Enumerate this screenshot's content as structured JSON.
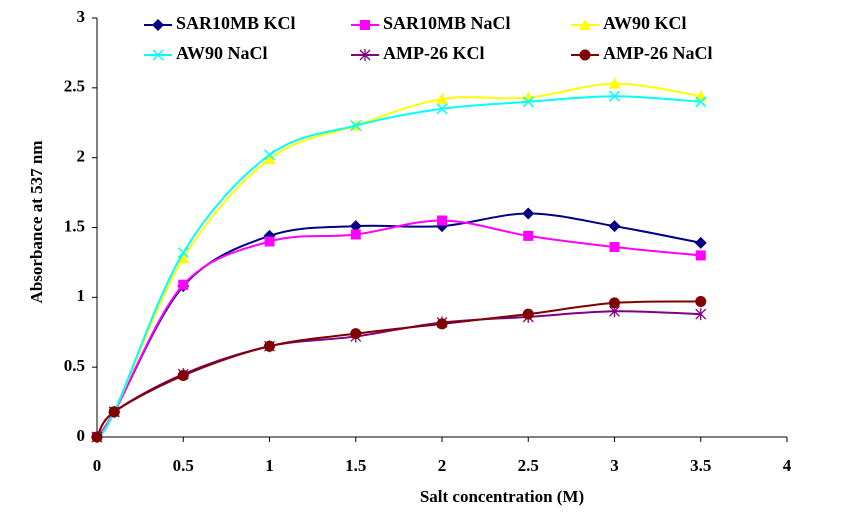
{
  "chart_data": {
    "type": "line",
    "x_label": "Salt concentration (M)",
    "y_label": "Absorbance at 537 nm",
    "x": [
      0,
      0.1,
      0.5,
      1,
      1.5,
      2,
      2.5,
      3,
      3.5
    ],
    "series": [
      {
        "name": "SAR10MB KCl",
        "color": "#000080",
        "marker": "diamond",
        "values": [
          0,
          0.18,
          1.08,
          1.44,
          1.51,
          1.51,
          1.6,
          1.51,
          1.39
        ]
      },
      {
        "name": "SAR10MB NaCl",
        "color": "#ff00ff",
        "marker": "square",
        "values": [
          0,
          0.18,
          1.09,
          1.4,
          1.45,
          1.55,
          1.44,
          1.36,
          1.3
        ]
      },
      {
        "name": "AW90 KCl",
        "color": "#ffff00",
        "marker": "triangle",
        "values": [
          0,
          0.18,
          1.28,
          1.99,
          2.23,
          2.42,
          2.43,
          2.53,
          2.44
        ]
      },
      {
        "name": "AW90 NaCl",
        "color": "#00ffff",
        "marker": "x",
        "values": [
          0,
          0.18,
          1.32,
          2.02,
          2.23,
          2.35,
          2.4,
          2.44,
          2.4
        ]
      },
      {
        "name": "AMP-26 KCl",
        "color": "#800080",
        "marker": "star",
        "values": [
          0,
          0.18,
          0.45,
          0.65,
          0.72,
          0.82,
          0.86,
          0.9,
          0.88
        ]
      },
      {
        "name": "AMP-26 NaCl",
        "color": "#800000",
        "marker": "circle",
        "values": [
          0,
          0.18,
          0.44,
          0.65,
          0.74,
          0.81,
          0.88,
          0.96,
          0.97
        ]
      }
    ],
    "xlim": [
      0,
      4
    ],
    "xticks": [
      0,
      0.5,
      1,
      1.5,
      2,
      2.5,
      3,
      3.5,
      4
    ],
    "ylim": [
      0,
      3
    ],
    "yticks": [
      0,
      0.5,
      1,
      1.5,
      2,
      2.5,
      3
    ],
    "grid": false,
    "smooth": true
  }
}
